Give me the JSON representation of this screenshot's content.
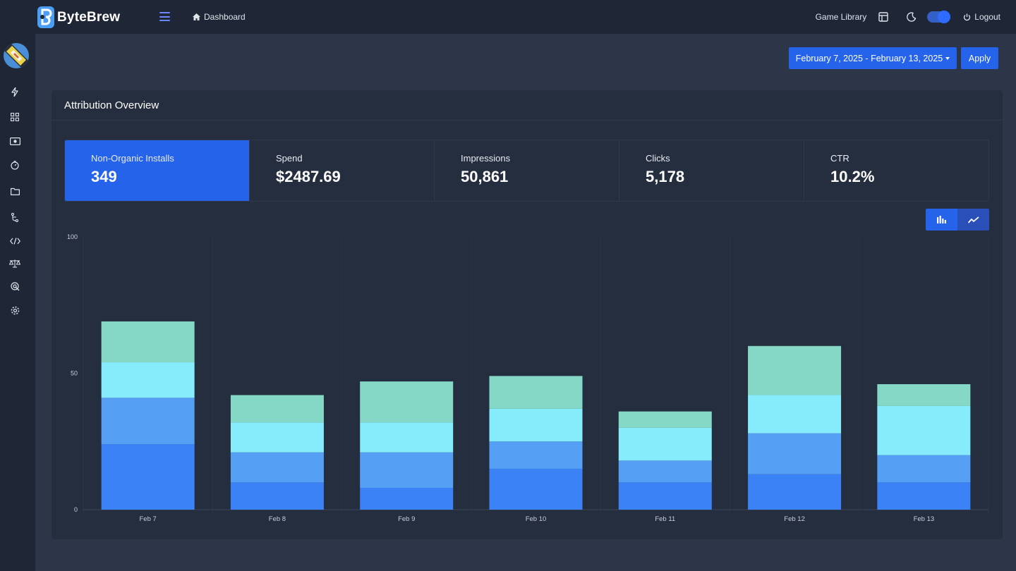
{
  "app": {
    "brand": "ByteBrew"
  },
  "header": {
    "breadcrumb": "Dashboard",
    "game_library": "Game Library",
    "logout": "Logout"
  },
  "sidebar": {
    "icons": [
      "bolt-icon",
      "grid-icon",
      "money-icon",
      "timer-icon",
      "folder-icon",
      "branch-icon",
      "code-icon",
      "scale-icon",
      "target-icon",
      "settings-icon"
    ]
  },
  "filters": {
    "date_range": "February 7, 2025 - February 13, 2025",
    "apply": "Apply"
  },
  "card": {
    "title": "Attribution Overview",
    "metrics": [
      {
        "label": "Non-Organic Installs",
        "value": "349",
        "active": true
      },
      {
        "label": "Spend",
        "value": "$2487.69",
        "active": false
      },
      {
        "label": "Impressions",
        "value": "50,861",
        "active": false
      },
      {
        "label": "Clicks",
        "value": "5,178",
        "active": false
      },
      {
        "label": "CTR",
        "value": "10.2%",
        "active": false
      }
    ]
  },
  "colors": {
    "accent": "#2563eb",
    "series": [
      "#3b82f6",
      "#55a0f5",
      "#86ebfb",
      "#85d8c5"
    ]
  },
  "chart_data": {
    "type": "bar",
    "stacked": true,
    "categories": [
      "Feb 7",
      "Feb 8",
      "Feb 9",
      "Feb 10",
      "Feb 11",
      "Feb 12",
      "Feb 13"
    ],
    "series": [
      {
        "values": [
          24,
          10,
          8,
          15,
          10,
          13,
          10
        ]
      },
      {
        "values": [
          17,
          11,
          13,
          10,
          8,
          15,
          10
        ]
      },
      {
        "values": [
          13,
          11,
          11,
          12,
          12,
          14,
          18
        ]
      },
      {
        "values": [
          15,
          10,
          15,
          12,
          6,
          18,
          8
        ]
      }
    ],
    "ylim": [
      0,
      100
    ],
    "yticks": [
      0,
      50,
      100
    ],
    "grid": true
  }
}
